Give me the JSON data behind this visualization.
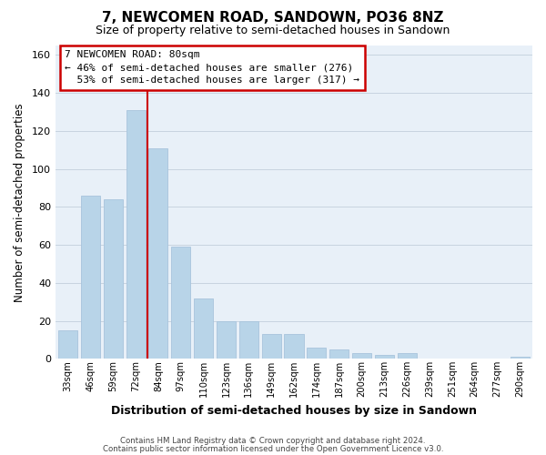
{
  "title": "7, NEWCOMEN ROAD, SANDOWN, PO36 8NZ",
  "subtitle": "Size of property relative to semi-detached houses in Sandown",
  "xlabel": "Distribution of semi-detached houses by size in Sandown",
  "ylabel": "Number of semi-detached properties",
  "categories": [
    "33sqm",
    "46sqm",
    "59sqm",
    "72sqm",
    "84sqm",
    "97sqm",
    "110sqm",
    "123sqm",
    "136sqm",
    "149sqm",
    "162sqm",
    "174sqm",
    "187sqm",
    "200sqm",
    "213sqm",
    "226sqm",
    "239sqm",
    "251sqm",
    "264sqm",
    "277sqm",
    "290sqm"
  ],
  "values": [
    15,
    86,
    84,
    131,
    111,
    59,
    32,
    20,
    20,
    13,
    13,
    6,
    5,
    3,
    2,
    3,
    0,
    0,
    0,
    0,
    1
  ],
  "bar_color": "#b8d4e8",
  "bar_edge_color": "#a8c4dc",
  "red_line_x": 3.5,
  "ylim": [
    0,
    165
  ],
  "yticks": [
    0,
    20,
    40,
    60,
    80,
    100,
    120,
    140,
    160
  ],
  "annotation_title": "7 NEWCOMEN ROAD: 80sqm",
  "annotation_line1": "← 46% of semi-detached houses are smaller (276)",
  "annotation_line2": "  53% of semi-detached houses are larger (317) →",
  "footer_line1": "Contains HM Land Registry data © Crown copyright and database right 2024.",
  "footer_line2": "Contains public sector information licensed under the Open Government Licence v3.0.",
  "bg_color": "#ffffff",
  "plot_bg_color": "#e8f0f8",
  "grid_color": "#c8d4e0",
  "annotation_box_color": "#ffffff",
  "annotation_box_edge": "#cc0000",
  "red_line_color": "#cc0000",
  "title_fontsize": 11,
  "subtitle_fontsize": 9
}
